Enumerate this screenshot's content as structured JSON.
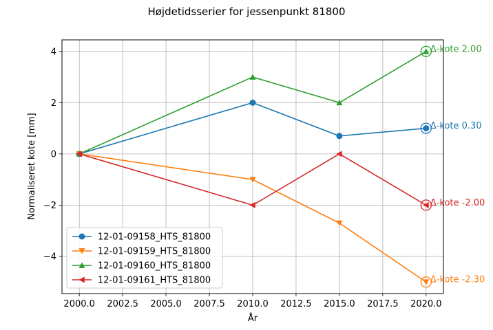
{
  "chart_data": {
    "type": "line",
    "title": "Højdetidsserier for jessenpunkt 81800",
    "xlabel": "År",
    "ylabel": "Normaliseret kote [mm]",
    "xlim": [
      1999.0,
      2021.0
    ],
    "ylim": [
      -5.45,
      4.45
    ],
    "grid": true,
    "legend_position": "lower-left",
    "x_ticks": [
      {
        "value": 2000,
        "label": "2000.0"
      },
      {
        "value": 2002.5,
        "label": "2002.5"
      },
      {
        "value": 2005,
        "label": "2005.0"
      },
      {
        "value": 2007.5,
        "label": "2007.5"
      },
      {
        "value": 2010,
        "label": "2010.0"
      },
      {
        "value": 2012.5,
        "label": "2012.5"
      },
      {
        "value": 2015,
        "label": "2015.0"
      },
      {
        "value": 2017.5,
        "label": "2017.5"
      },
      {
        "value": 2020,
        "label": "2020.0"
      }
    ],
    "y_ticks": [
      {
        "value": -4,
        "label": "−4"
      },
      {
        "value": -2,
        "label": "−2"
      },
      {
        "value": 0,
        "label": "0"
      },
      {
        "value": 2,
        "label": "2"
      },
      {
        "value": 4,
        "label": "4"
      }
    ],
    "x": [
      2000,
      2010,
      2015,
      2020
    ],
    "series": [
      {
        "name": "12-01-09158_HTS_81800",
        "color": "#1f77b4",
        "marker": "circle",
        "values": [
          0,
          2,
          0.7,
          1
        ],
        "annotation": "Δ-kote 0.30"
      },
      {
        "name": "12-01-09159_HTS_81800",
        "color": "#ff7f0e",
        "marker": "triangle-down",
        "values": [
          0,
          -1,
          -2.7,
          -5
        ],
        "annotation": "Δ-kote -2.30"
      },
      {
        "name": "12-01-09160_HTS_81800",
        "color": "#2ca02c",
        "marker": "triangle-up",
        "values": [
          0,
          3,
          2,
          4
        ],
        "annotation": "Δ-kote 2.00"
      },
      {
        "name": "12-01-09161_HTS_81800",
        "color": "#d62728",
        "marker": "triangle-left",
        "values": [
          0,
          -2,
          0,
          -2
        ],
        "annotation": "Δ-kote -2.00"
      }
    ]
  }
}
